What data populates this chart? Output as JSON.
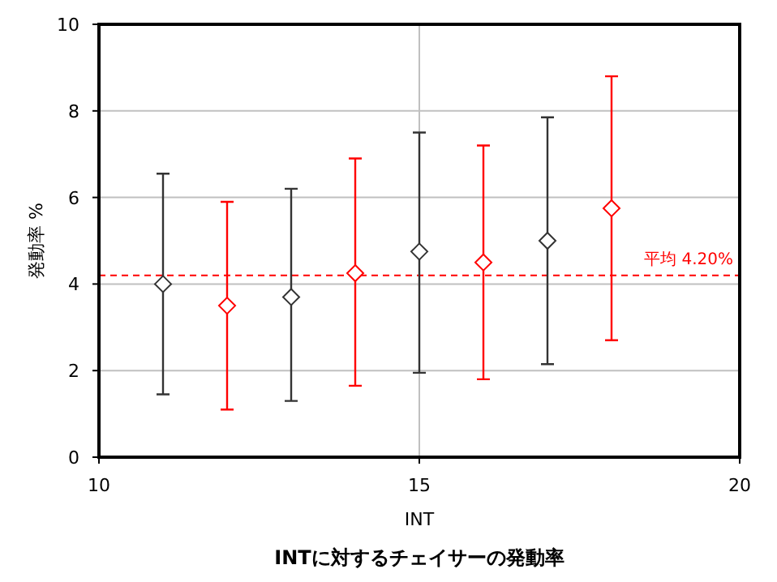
{
  "chart_data": {
    "type": "scatter",
    "title": "INTに対するチェイサーの発動率",
    "xlabel": "INT",
    "ylabel": "発動率 %",
    "x": [
      11,
      12,
      13,
      14,
      15,
      16,
      17,
      18
    ],
    "values": [
      4.0,
      3.5,
      3.7,
      4.25,
      4.75,
      4.5,
      5.0,
      5.75
    ],
    "errors": [
      [
        1.45,
        6.55
      ],
      [
        1.1,
        5.9
      ],
      [
        1.3,
        6.2
      ],
      [
        1.65,
        6.9
      ],
      [
        1.95,
        7.5
      ],
      [
        1.8,
        7.2
      ],
      [
        2.15,
        7.85
      ],
      [
        2.7,
        8.8
      ]
    ],
    "colors": [
      "#333333",
      "#ff0000",
      "#333333",
      "#ff0000",
      "#333333",
      "#ff0000",
      "#333333",
      "#ff0000"
    ],
    "marker": "diamond",
    "xlim": [
      10,
      20
    ],
    "xticks": [
      10,
      15,
      20
    ],
    "ylim": [
      0,
      10
    ],
    "yticks": [
      0,
      2,
      4,
      6,
      8,
      10
    ],
    "grid": true,
    "ref_lines": [
      {
        "axis": "y",
        "value": 4.2,
        "label": "平均 4.20%",
        "color": "#ff0000",
        "line_style": "dashed"
      }
    ]
  }
}
